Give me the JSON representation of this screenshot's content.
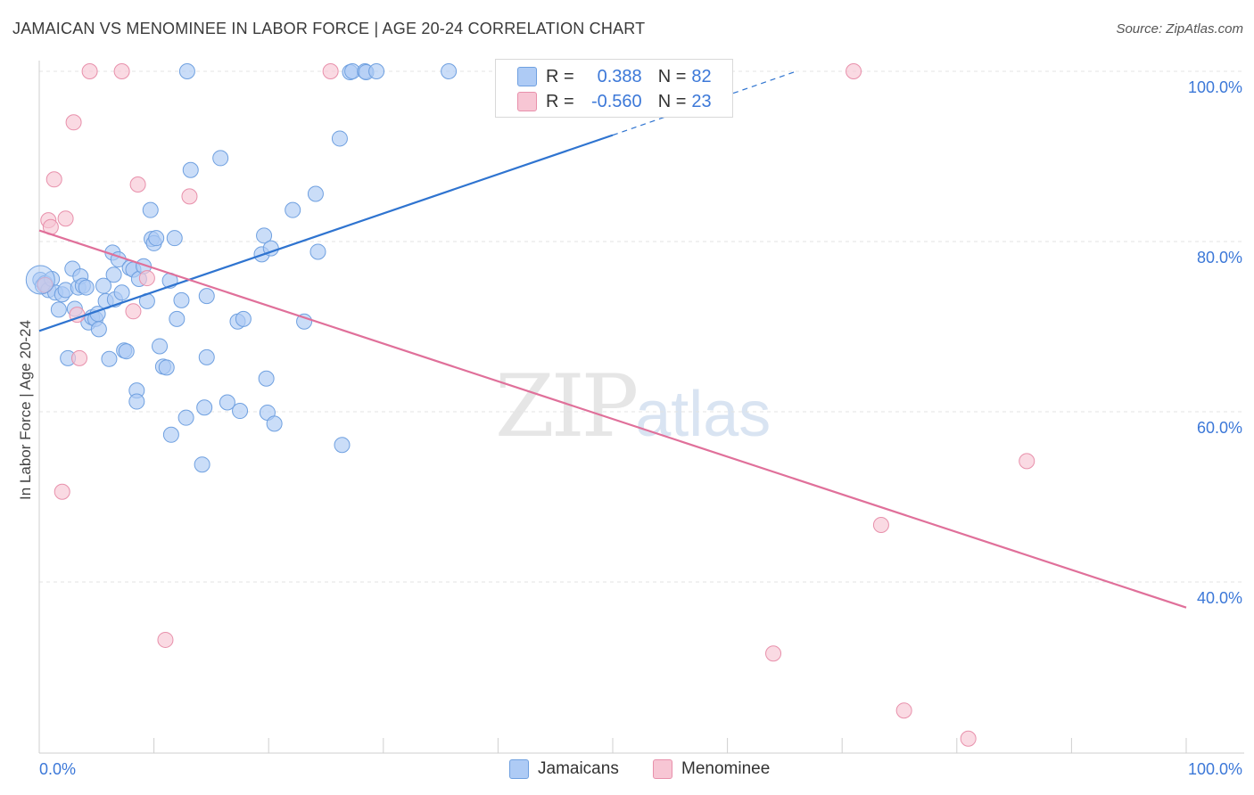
{
  "header": {
    "title": "JAMAICAN VS MENOMINEE IN LABOR FORCE | AGE 20-24 CORRELATION CHART",
    "source": "Source: ZipAtlas.com"
  },
  "watermark": {
    "zip": "ZIP",
    "atlas": "atlas"
  },
  "legend": {
    "rows": [
      {
        "r_label": "R =",
        "r_value": "0.388",
        "n_label": "N =",
        "n_value": "82",
        "color": "#aecbf5",
        "border": "#6fa0e0"
      },
      {
        "r_label": "R =",
        "r_value": "-0.560",
        "n_label": "N =",
        "n_value": "23",
        "color": "#f7c6d4",
        "border": "#e890ab"
      }
    ]
  },
  "bottom_legend": {
    "jamaicans": "Jamaicans",
    "menominee": "Menominee"
  },
  "colors": {
    "blue_fill": "#aecbf5",
    "blue_stroke": "#6fa0e0",
    "blue_line": "#2f74d0",
    "pink_fill": "#f7c6d4",
    "pink_stroke": "#e890ab",
    "pink_line": "#e0709a",
    "tick_text": "#3c78d8",
    "grid": "#e3e3e3"
  },
  "chart_data": {
    "type": "scatter",
    "title": "JAMAICAN VS MENOMINEE IN LABOR FORCE | AGE 20-24 CORRELATION CHART",
    "xlabel": "",
    "ylabel": "In Labor Force | Age 20-24",
    "xlim": [
      0,
      100
    ],
    "ylim": [
      20,
      102
    ],
    "x_tick_labels": [
      "0.0%",
      "100.0%"
    ],
    "y_ticks": [
      40,
      60,
      80,
      100
    ],
    "y_tick_labels": [
      "40.0%",
      "60.0%",
      "80.0%",
      "100.0%"
    ],
    "grid": true,
    "legend_position": "top-center",
    "series": [
      {
        "name": "Jamaicans",
        "r": 0.388,
        "n": 82,
        "trend": {
          "x0": 0,
          "y0": 69.5,
          "x1": 50,
          "y1": 92.5,
          "dash_to_x": 66,
          "dash_to_y": 100
        },
        "points": [
          [
            0.1,
            75.5
          ],
          [
            0.3,
            74.8
          ],
          [
            0.5,
            75.1
          ],
          [
            0.8,
            74.3
          ],
          [
            1.1,
            75.6
          ],
          [
            1.4,
            74.0
          ],
          [
            1.7,
            72.0
          ],
          [
            2.0,
            73.8
          ],
          [
            2.3,
            74.3
          ],
          [
            2.5,
            66.3
          ],
          [
            2.9,
            76.8
          ],
          [
            3.1,
            72.1
          ],
          [
            3.4,
            74.6
          ],
          [
            3.6,
            75.9
          ],
          [
            3.8,
            74.8
          ],
          [
            4.1,
            74.6
          ],
          [
            4.3,
            70.5
          ],
          [
            4.6,
            71.1
          ],
          [
            4.9,
            70.9
          ],
          [
            5.1,
            71.5
          ],
          [
            5.2,
            69.7
          ],
          [
            5.6,
            74.8
          ],
          [
            5.8,
            73.0
          ],
          [
            6.1,
            66.2
          ],
          [
            6.4,
            78.7
          ],
          [
            6.5,
            76.1
          ],
          [
            6.6,
            73.2
          ],
          [
            6.9,
            77.9
          ],
          [
            7.2,
            74.0
          ],
          [
            7.4,
            67.2
          ],
          [
            7.6,
            67.1
          ],
          [
            7.9,
            76.9
          ],
          [
            8.2,
            76.7
          ],
          [
            8.5,
            62.5
          ],
          [
            8.5,
            61.2
          ],
          [
            8.7,
            75.6
          ],
          [
            9.1,
            77.1
          ],
          [
            9.4,
            73.0
          ],
          [
            9.7,
            83.7
          ],
          [
            9.8,
            80.3
          ],
          [
            10.0,
            79.8
          ],
          [
            10.2,
            80.4
          ],
          [
            10.5,
            67.7
          ],
          [
            10.8,
            65.3
          ],
          [
            11.1,
            65.2
          ],
          [
            11.4,
            75.4
          ],
          [
            11.5,
            57.3
          ],
          [
            11.8,
            80.4
          ],
          [
            12.0,
            70.9
          ],
          [
            12.4,
            73.1
          ],
          [
            12.8,
            59.3
          ],
          [
            13.2,
            88.4
          ],
          [
            14.2,
            53.8
          ],
          [
            14.4,
            60.5
          ],
          [
            14.6,
            66.4
          ],
          [
            14.6,
            73.6
          ],
          [
            15.8,
            89.8
          ],
          [
            16.4,
            61.1
          ],
          [
            17.3,
            70.6
          ],
          [
            17.5,
            60.1
          ],
          [
            17.8,
            70.9
          ],
          [
            19.4,
            78.5
          ],
          [
            19.6,
            80.7
          ],
          [
            19.8,
            63.9
          ],
          [
            19.9,
            59.9
          ],
          [
            20.2,
            79.2
          ],
          [
            20.5,
            58.6
          ],
          [
            22.1,
            83.7
          ],
          [
            23.1,
            70.6
          ],
          [
            24.1,
            85.6
          ],
          [
            24.3,
            78.8
          ],
          [
            26.2,
            92.1
          ],
          [
            26.4,
            56.1
          ],
          [
            27.1,
            99.9
          ],
          [
            27.3,
            100.0
          ],
          [
            28.4,
            100.0
          ],
          [
            28.5,
            99.9
          ],
          [
            29.4,
            100.0
          ],
          [
            35.7,
            100.0
          ],
          [
            44.5,
            100.0
          ],
          [
            45.3,
            100.0
          ],
          [
            12.9,
            100.0
          ]
        ]
      },
      {
        "name": "Menominee",
        "r": -0.56,
        "n": 23,
        "trend": {
          "x0": 0,
          "y0": 81.3,
          "x1": 100,
          "y1": 37.0
        },
        "points": [
          [
            0.5,
            74.9
          ],
          [
            0.8,
            82.5
          ],
          [
            1.0,
            81.7
          ],
          [
            1.3,
            87.3
          ],
          [
            2.0,
            50.6
          ],
          [
            2.3,
            82.7
          ],
          [
            3.0,
            94.0
          ],
          [
            3.3,
            71.4
          ],
          [
            3.5,
            66.3
          ],
          [
            4.4,
            100.0
          ],
          [
            7.2,
            100.0
          ],
          [
            8.2,
            71.8
          ],
          [
            8.6,
            86.7
          ],
          [
            9.4,
            75.7
          ],
          [
            11.0,
            33.2
          ],
          [
            13.1,
            85.3
          ],
          [
            25.4,
            100.0
          ],
          [
            64.0,
            31.6
          ],
          [
            71.0,
            100.0
          ],
          [
            73.4,
            46.7
          ],
          [
            75.4,
            24.9
          ],
          [
            81.0,
            21.6
          ],
          [
            86.1,
            54.2
          ]
        ]
      }
    ]
  }
}
